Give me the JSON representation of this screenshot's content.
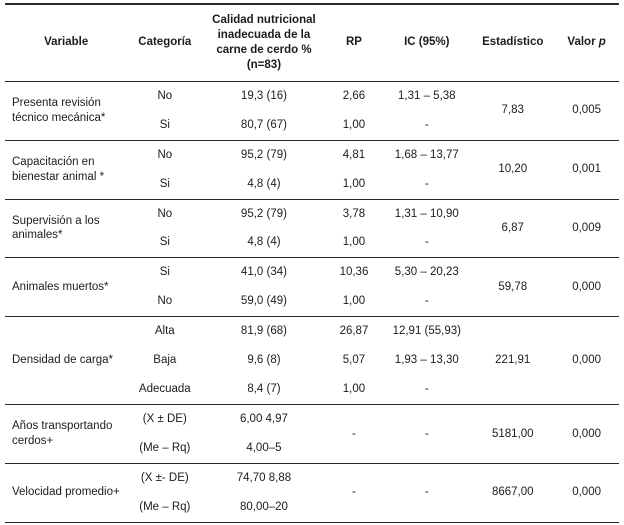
{
  "table": {
    "header": {
      "variable": "Variable",
      "categoria": "Categoría",
      "calidad": "Calidad nutricional inadecuada de la carne de cerdo % (n=83)",
      "rp": "RP",
      "ic": "IC (95%)",
      "estadistico": "Estadístico",
      "valor": "Valor",
      "p": "p"
    },
    "groups": [
      {
        "variable": "Presenta revisión técnico mecánica*",
        "rows": [
          {
            "categoria": "No",
            "valor": "19,3 (16)",
            "rp": "2,66",
            "ic": "1,31 – 5,38"
          },
          {
            "categoria": "Si",
            "valor": "80,7 (67)",
            "rp": "1,00",
            "ic": "-"
          }
        ],
        "estadistico": "7,83",
        "p": "0,005"
      },
      {
        "variable": "Capacitación en bienestar animal *",
        "rows": [
          {
            "categoria": "No",
            "valor": "95,2 (79)",
            "rp": "4,81",
            "ic": "1,68 – 13,77"
          },
          {
            "categoria": "Si",
            "valor": "4,8 (4)",
            "rp": "1,00",
            "ic": "-"
          }
        ],
        "estadistico": "10,20",
        "p": "0,001"
      },
      {
        "variable": "Supervisión a los animales*",
        "rows": [
          {
            "categoria": "No",
            "valor": "95,2 (79)",
            "rp": "3,78",
            "ic": "1,31 – 10,90"
          },
          {
            "categoria": "Si",
            "valor": "4,8 (4)",
            "rp": "1,00",
            "ic": "-"
          }
        ],
        "estadistico": "6,87",
        "p": "0,009"
      },
      {
        "variable": "Animales muertos*",
        "rows": [
          {
            "categoria": "Si",
            "valor": "41,0 (34)",
            "rp": "10,36",
            "ic": "5,30 – 20,23"
          },
          {
            "categoria": "No",
            "valor": "59,0 (49)",
            "rp": "1,00",
            "ic": "-"
          }
        ],
        "estadistico": "59,78",
        "p": "0,000"
      },
      {
        "variable": "Densidad de carga*",
        "rows": [
          {
            "categoria": "Alta",
            "valor": "81,9 (68)",
            "rp": "26,87",
            "ic": "12,91 (55,93)"
          },
          {
            "categoria": "Baja",
            "valor": "9,6 (8)",
            "rp": "5,07",
            "ic": "1,93 – 13,30"
          },
          {
            "categoria": "Adecuada",
            "valor": "8,4 (7)",
            "rp": "1,00",
            "ic": "-"
          }
        ],
        "estadistico": "221,91",
        "p": "0,000"
      },
      {
        "variable": "Años transportando cerdos+",
        "rows": [
          {
            "categoria": "(X ± DE)",
            "valor": "6,00 4,97"
          },
          {
            "categoria": "(Me – Rq)",
            "valor": "4,00–5"
          }
        ],
        "rp": "-",
        "ic": "-",
        "estadistico": "5181,00",
        "p": "0,000"
      },
      {
        "variable": "Velocidad promedio+",
        "rows": [
          {
            "categoria": "(X ±- DE)",
            "valor": "74,70 8,88"
          },
          {
            "categoria": "(Me – Rq)",
            "valor": "80,00–20"
          }
        ],
        "rp": "-",
        "ic": "-",
        "estadistico": "8667,00",
        "p": "0,000"
      }
    ]
  }
}
